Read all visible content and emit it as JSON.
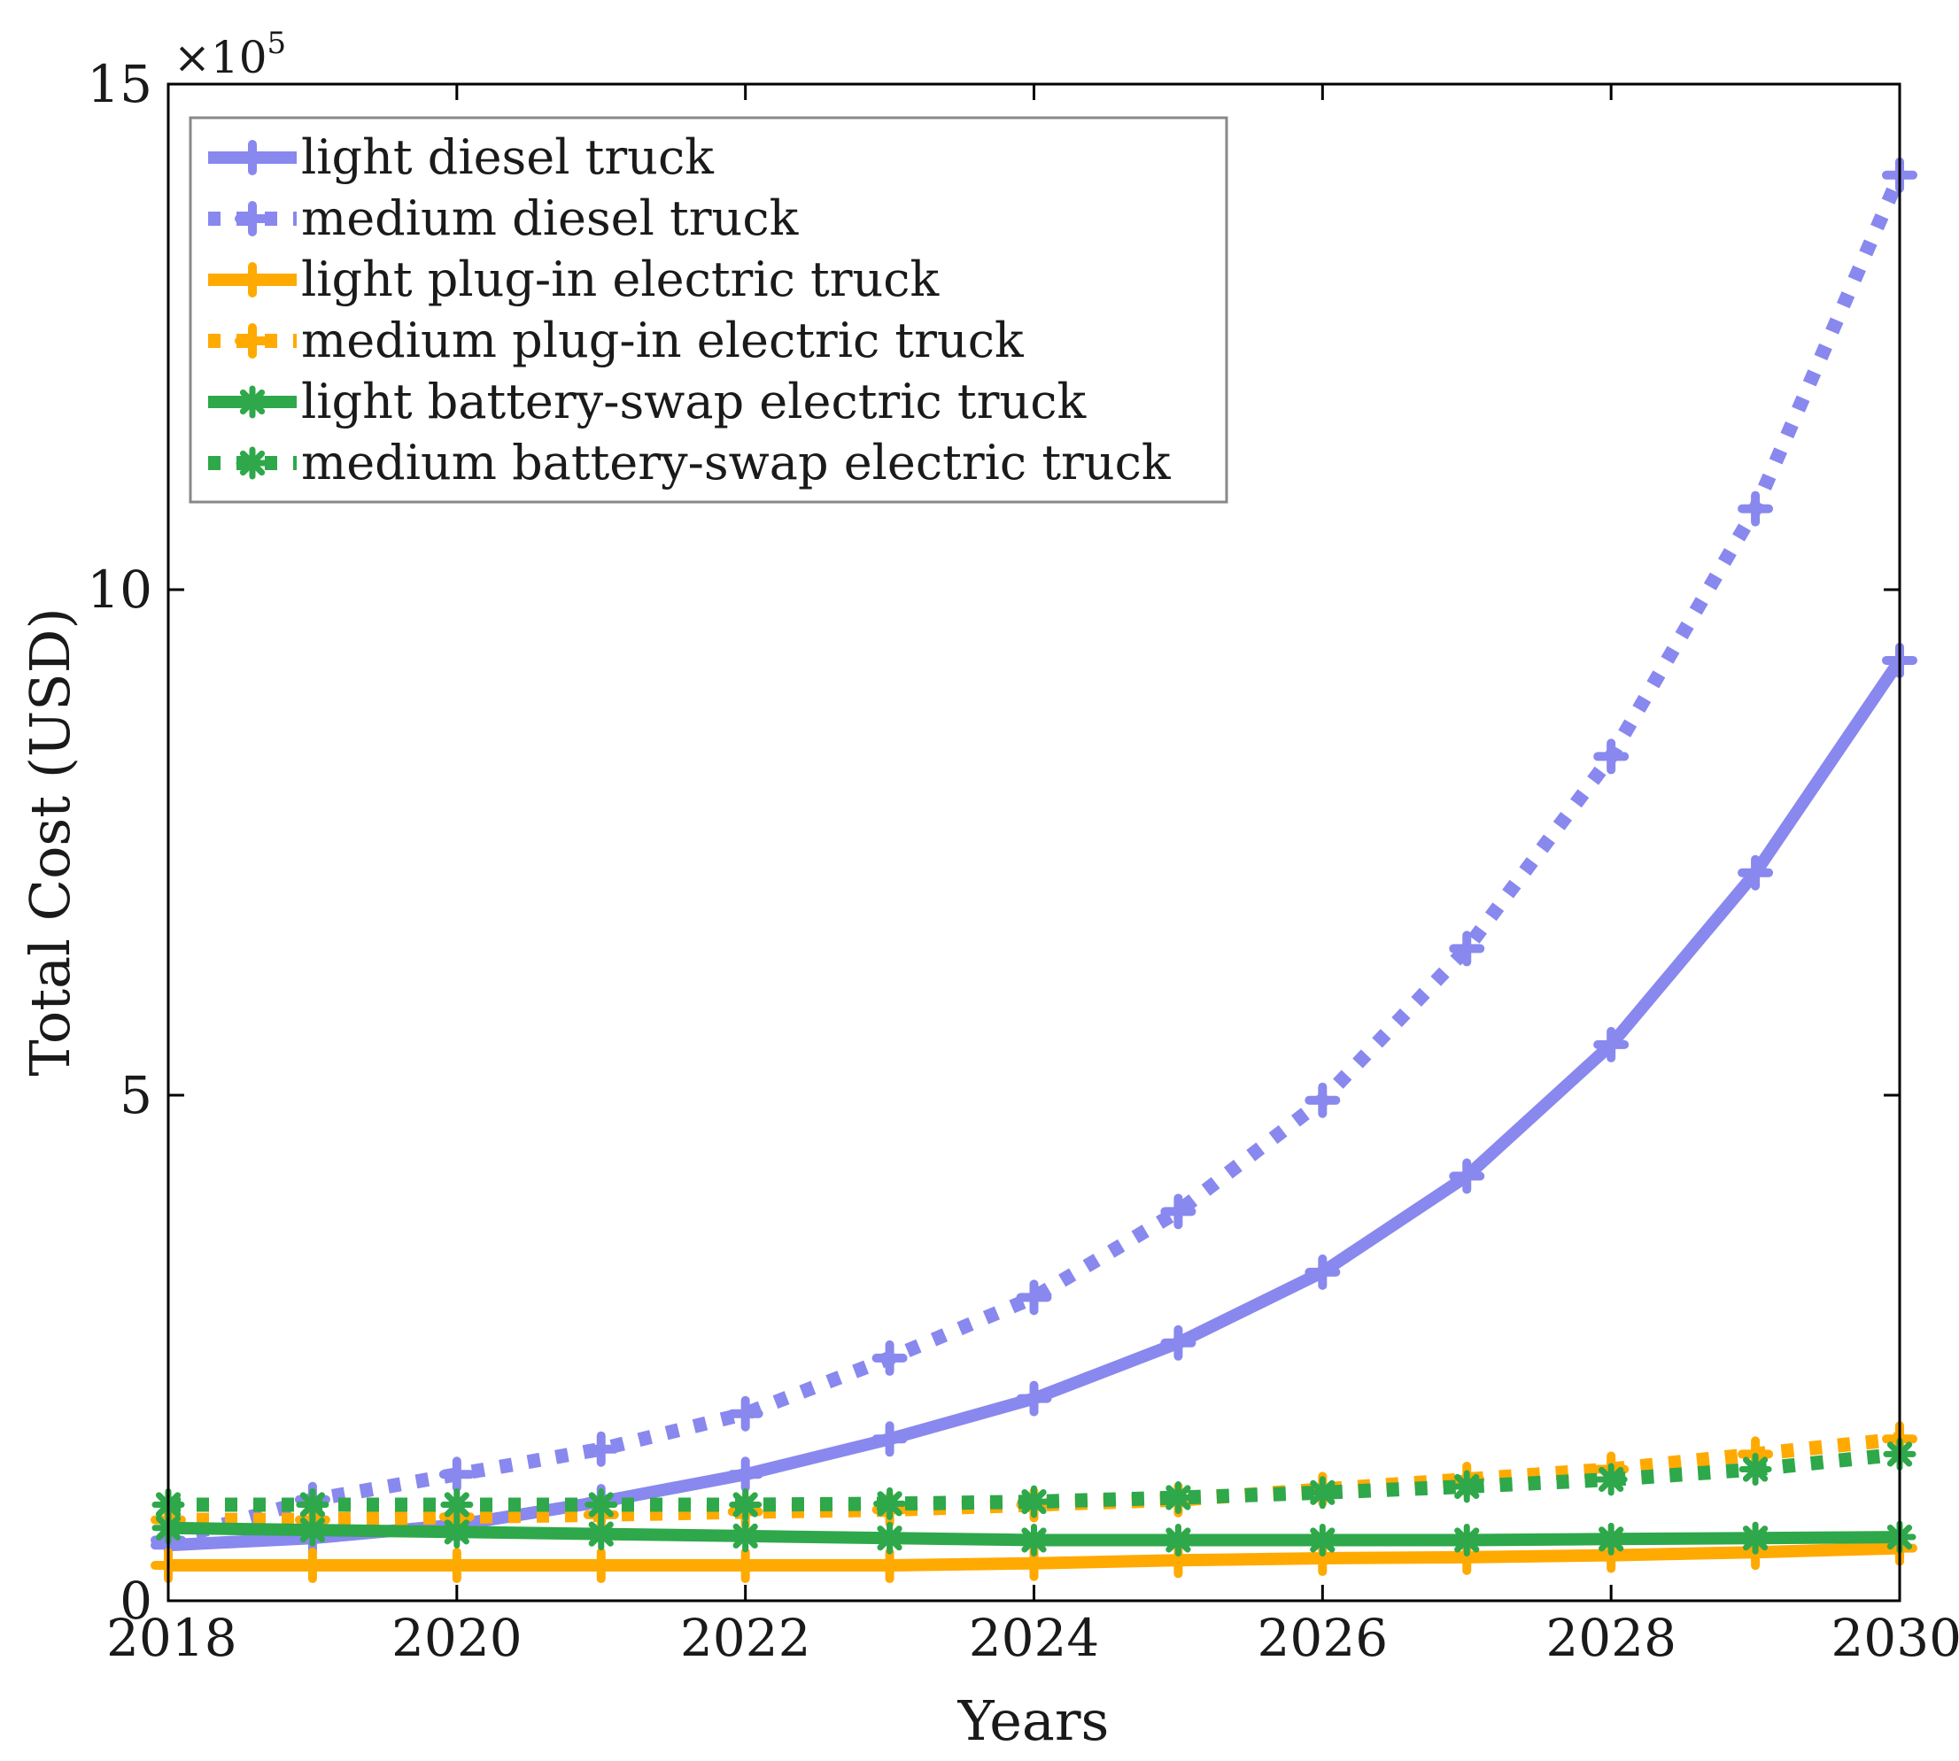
{
  "chart_data": {
    "type": "line",
    "title": "",
    "xlabel": "Years",
    "ylabel": "Total Cost (USD)",
    "y_multiplier": "×10",
    "y_multiplier_exp": "5",
    "xlim": [
      2018,
      2030
    ],
    "ylim": [
      0,
      15
    ],
    "x_ticks": [
      2018,
      2020,
      2022,
      2024,
      2026,
      2028,
      2030
    ],
    "x_tick_labels": [
      "2018",
      "2020",
      "2022",
      "2024",
      "2026",
      "2028",
      "2030"
    ],
    "y_ticks": [
      0,
      5,
      10,
      15
    ],
    "y_tick_labels": [
      "0",
      "5",
      "10",
      "15"
    ],
    "legend_position": "top-left",
    "x": [
      2018,
      2019,
      2020,
      2021,
      2022,
      2023,
      2024,
      2025,
      2026,
      2027,
      2028,
      2029,
      2030
    ],
    "series": [
      {
        "name": "light diesel truck",
        "color": "#8888ee",
        "line_style": "solid",
        "marker": "plus",
        "values": [
          0.55,
          0.62,
          0.75,
          0.98,
          1.25,
          1.6,
          2.0,
          2.55,
          3.25,
          4.2,
          5.5,
          7.2,
          9.3
        ]
      },
      {
        "name": "medium diesel truck",
        "color": "#8888ee",
        "line_style": "dotted",
        "marker": "plus",
        "values": [
          0.6,
          1.0,
          1.25,
          1.5,
          1.85,
          2.4,
          3.0,
          3.85,
          4.95,
          6.45,
          8.35,
          10.8,
          14.1
        ]
      },
      {
        "name": "light plug-in electric truck",
        "color": "#ffaa00",
        "line_style": "solid",
        "marker": "plus",
        "values": [
          0.35,
          0.35,
          0.35,
          0.35,
          0.35,
          0.35,
          0.37,
          0.4,
          0.42,
          0.43,
          0.45,
          0.48,
          0.52
        ]
      },
      {
        "name": "medium plug-in electric truck",
        "color": "#ffaa00",
        "line_style": "dotted",
        "marker": "plus",
        "values": [
          0.8,
          0.8,
          0.83,
          0.85,
          0.88,
          0.9,
          0.95,
          1.0,
          1.1,
          1.2,
          1.3,
          1.45,
          1.6
        ]
      },
      {
        "name": "light battery-swap electric truck",
        "color": "#2ea84a",
        "line_style": "solid",
        "marker": "star",
        "values": [
          0.72,
          0.7,
          0.68,
          0.66,
          0.64,
          0.62,
          0.6,
          0.6,
          0.6,
          0.6,
          0.61,
          0.62,
          0.63
        ]
      },
      {
        "name": "medium battery-swap electric truck",
        "color": "#2ea84a",
        "line_style": "dotted",
        "marker": "star",
        "values": [
          0.95,
          0.95,
          0.95,
          0.95,
          0.95,
          0.96,
          0.98,
          1.02,
          1.07,
          1.13,
          1.2,
          1.3,
          1.45
        ]
      }
    ]
  }
}
